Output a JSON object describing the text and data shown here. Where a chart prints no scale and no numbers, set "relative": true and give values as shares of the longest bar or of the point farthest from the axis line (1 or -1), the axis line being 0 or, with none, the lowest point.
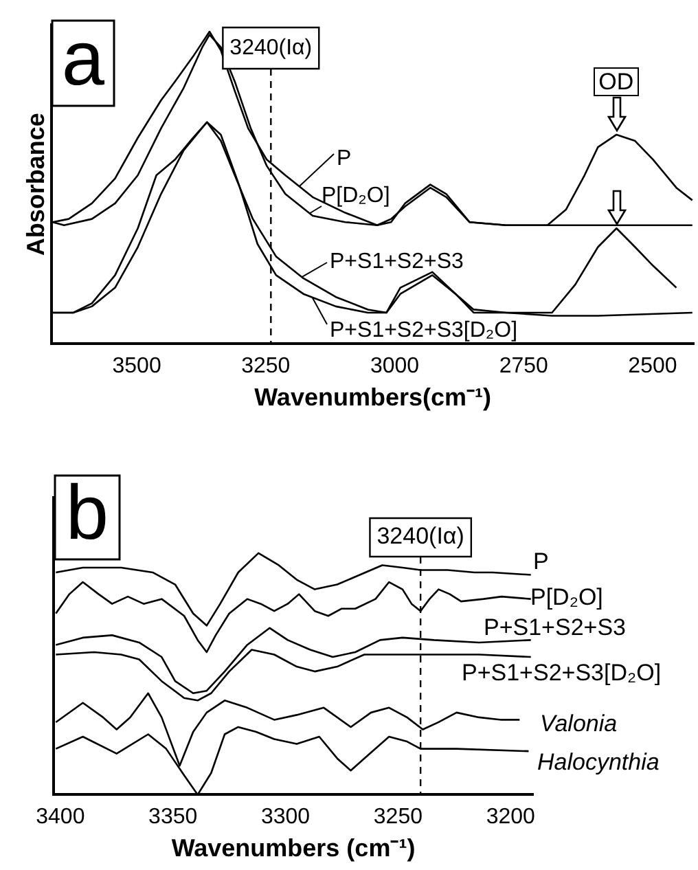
{
  "chart_data": [
    {
      "type": "line",
      "title": "a",
      "xlabel": "Wavenumbers(cm⁻¹)",
      "ylabel": "Absorbance",
      "relative": true,
      "xlim": [
        3665,
        2420
      ],
      "xticks": [
        3500,
        3250,
        3000,
        2750,
        2500
      ],
      "tick_labels": "x",
      "grid": false,
      "legend": "center",
      "marker": "none",
      "line_style": "solid",
      "ref_lines": [
        {
          "axis": "x",
          "value": 3240,
          "label": "3240(Iα)",
          "line_style": "dashed"
        }
      ],
      "annotations": [
        {
          "text": "OD",
          "x": 2570,
          "y": 0.67
        }
      ],
      "series": [
        {
          "name": "P",
          "color": "#000000",
          "x": [
            3663,
            3632,
            3587,
            3542,
            3498,
            3453,
            3426,
            3391,
            3359,
            3337,
            3310,
            3284,
            3248,
            3212,
            3159,
            3096,
            3034,
            3007,
            2980,
            2931,
            2900,
            2855,
            2784,
            2695,
            2606,
            2423
          ],
          "values": [
            0.39,
            0.4,
            0.45,
            0.53,
            0.66,
            0.78,
            0.84,
            0.92,
            1,
            0.94,
            0.81,
            0.69,
            0.59,
            0.54,
            0.47,
            0.42,
            0.38,
            0.39,
            0.45,
            0.51,
            0.48,
            0.39,
            0.38,
            0.38,
            0.38,
            0.38
          ]
        },
        {
          "name": "P[D₂O]",
          "color": "#000000",
          "x": [
            3663,
            3641,
            3587,
            3542,
            3498,
            3453,
            3409,
            3373,
            3359,
            3337,
            3310,
            3279,
            3248,
            3212,
            3159,
            3096,
            3034,
            3007,
            2980,
            2931,
            2900,
            2855,
            2784,
            2704,
            2668,
            2632,
            2606,
            2570,
            2534,
            2499,
            2454,
            2423
          ],
          "values": [
            0.39,
            0.38,
            0.4,
            0.45,
            0.54,
            0.69,
            0.82,
            0.95,
            0.99,
            0.95,
            0.84,
            0.69,
            0.57,
            0.48,
            0.41,
            0.39,
            0.38,
            0.4,
            0.44,
            0.5,
            0.47,
            0.39,
            0.38,
            0.38,
            0.43,
            0.54,
            0.63,
            0.67,
            0.65,
            0.59,
            0.5,
            0.46
          ]
        },
        {
          "name": "P+S1+S2+S3",
          "color": "#000000",
          "x": [
            3663,
            3623,
            3587,
            3542,
            3498,
            3462,
            3426,
            3391,
            3364,
            3337,
            3310,
            3275,
            3230,
            3177,
            3114,
            3052,
            3016,
            2989,
            2927,
            2882,
            2847,
            2784,
            2695,
            2606,
            2423
          ],
          "values": [
            0.1,
            0.1,
            0.13,
            0.22,
            0.37,
            0.54,
            0.59,
            0.66,
            0.71,
            0.65,
            0.54,
            0.4,
            0.28,
            0.21,
            0.15,
            0.11,
            0.1,
            0.18,
            0.23,
            0.16,
            0.1,
            0.1,
            0.09,
            0.09,
            0.1
          ]
        },
        {
          "name": "P+S1+S2+S3[D₂O]",
          "color": "#000000",
          "x": [
            3663,
            3623,
            3587,
            3542,
            3498,
            3453,
            3409,
            3364,
            3337,
            3302,
            3266,
            3230,
            3177,
            3114,
            3052,
            3016,
            2989,
            2927,
            2882,
            2847,
            2784,
            2695,
            2650,
            2606,
            2570,
            2534,
            2499,
            2454
          ],
          "values": [
            0.1,
            0.1,
            0.12,
            0.18,
            0.31,
            0.48,
            0.62,
            0.71,
            0.67,
            0.51,
            0.32,
            0.22,
            0.16,
            0.12,
            0.1,
            0.1,
            0.16,
            0.22,
            0.16,
            0.11,
            0.1,
            0.1,
            0.19,
            0.31,
            0.37,
            0.31,
            0.25,
            0.18
          ]
        }
      ]
    },
    {
      "type": "line",
      "title": "b",
      "xlabel": "Wavenumbers (cm⁻¹)",
      "relative": true,
      "xlim": [
        3403,
        3190
      ],
      "xticks": [
        3400,
        3350,
        3300,
        3250,
        3200
      ],
      "tick_labels": "x",
      "grid": false,
      "marker": "none",
      "line_style": "solid",
      "ref_lines": [
        {
          "axis": "x",
          "value": 3240,
          "label": "3240(Iα)",
          "line_style": "dashed"
        }
      ],
      "series": [
        {
          "name": "P",
          "color": "#000000",
          "x": [
            3402,
            3390,
            3373,
            3359,
            3349,
            3341,
            3335,
            3329,
            3321,
            3312,
            3303,
            3295,
            3287,
            3277,
            3267,
            3257,
            3248,
            3240,
            3228,
            3216,
            3208,
            3191
          ],
          "values": [
            0.92,
            0.94,
            0.94,
            0.92,
            0.87,
            0.75,
            0.7,
            0.79,
            0.92,
            1,
            0.95,
            0.89,
            0.85,
            0.87,
            0.91,
            0.95,
            0.94,
            0.93,
            0.93,
            0.92,
            0.92,
            0.91
          ]
        },
        {
          "name": "P[D₂O]",
          "color": "#000000",
          "x": [
            3402,
            3396,
            3390,
            3383,
            3377,
            3370,
            3363,
            3355,
            3345,
            3339,
            3335,
            3331,
            3325,
            3317,
            3311,
            3305,
            3299,
            3294,
            3287,
            3281,
            3275,
            3269,
            3260,
            3254,
            3248,
            3244,
            3240,
            3236,
            3232,
            3227,
            3222,
            3212,
            3204,
            3191
          ],
          "values": [
            0.75,
            0.83,
            0.88,
            0.83,
            0.79,
            0.82,
            0.79,
            0.81,
            0.74,
            0.64,
            0.59,
            0.66,
            0.75,
            0.81,
            0.79,
            0.76,
            0.79,
            0.83,
            0.76,
            0.74,
            0.77,
            0.77,
            0.81,
            0.88,
            0.85,
            0.79,
            0.76,
            0.81,
            0.85,
            0.83,
            0.8,
            0.81,
            0.82,
            0.81
          ]
        },
        {
          "name": "P+S1+S2+S3",
          "color": "#000000",
          "x": [
            3402,
            3390,
            3377,
            3365,
            3355,
            3349,
            3341,
            3335,
            3327,
            3317,
            3307,
            3299,
            3289,
            3279,
            3269,
            3258,
            3248,
            3234,
            3214,
            3191
          ],
          "values": [
            0.62,
            0.65,
            0.66,
            0.63,
            0.57,
            0.47,
            0.42,
            0.43,
            0.51,
            0.62,
            0.69,
            0.64,
            0.6,
            0.57,
            0.59,
            0.64,
            0.65,
            0.64,
            0.63,
            0.64
          ]
        },
        {
          "name": "P+S1+S2+S3[D₂O]",
          "color": "#000000",
          "x": [
            3402,
            3385,
            3373,
            3365,
            3355,
            3345,
            3339,
            3333,
            3325,
            3315,
            3305,
            3295,
            3287,
            3277,
            3265,
            3248,
            3234,
            3214,
            3191
          ],
          "values": [
            0.58,
            0.59,
            0.58,
            0.56,
            0.47,
            0.4,
            0.39,
            0.42,
            0.51,
            0.6,
            0.58,
            0.53,
            0.51,
            0.53,
            0.58,
            0.58,
            0.58,
            0.58,
            0.57
          ]
        },
        {
          "name": "Valonia",
          "color": "#000000",
          "x": [
            3402,
            3390,
            3381,
            3375,
            3369,
            3361,
            3355,
            3347,
            3341,
            3335,
            3327,
            3317,
            3305,
            3295,
            3283,
            3271,
            3262,
            3254,
            3246,
            3239,
            3232,
            3224,
            3214,
            3204,
            3196
          ],
          "values": [
            0.3,
            0.38,
            0.32,
            0.27,
            0.32,
            0.42,
            0.32,
            0.12,
            0.26,
            0.34,
            0.39,
            0.36,
            0.31,
            0.33,
            0.36,
            0.28,
            0.34,
            0.36,
            0.32,
            0.27,
            0.3,
            0.34,
            0.32,
            0.31,
            0.31
          ]
        },
        {
          "name": "Halocynthia",
          "color": "#000000",
          "x": [
            3402,
            3390,
            3375,
            3361,
            3353,
            3345,
            3339,
            3333,
            3327,
            3321,
            3313,
            3305,
            3295,
            3285,
            3277,
            3271,
            3265,
            3254,
            3246,
            3240,
            3224,
            3192
          ],
          "values": [
            0.19,
            0.24,
            0.17,
            0.25,
            0.19,
            0.08,
            0.0,
            0.09,
            0.25,
            0.28,
            0.26,
            0.23,
            0.21,
            0.24,
            0.15,
            0.1,
            0.15,
            0.24,
            0.22,
            0.19,
            0.19,
            0.18
          ]
        }
      ]
    }
  ]
}
